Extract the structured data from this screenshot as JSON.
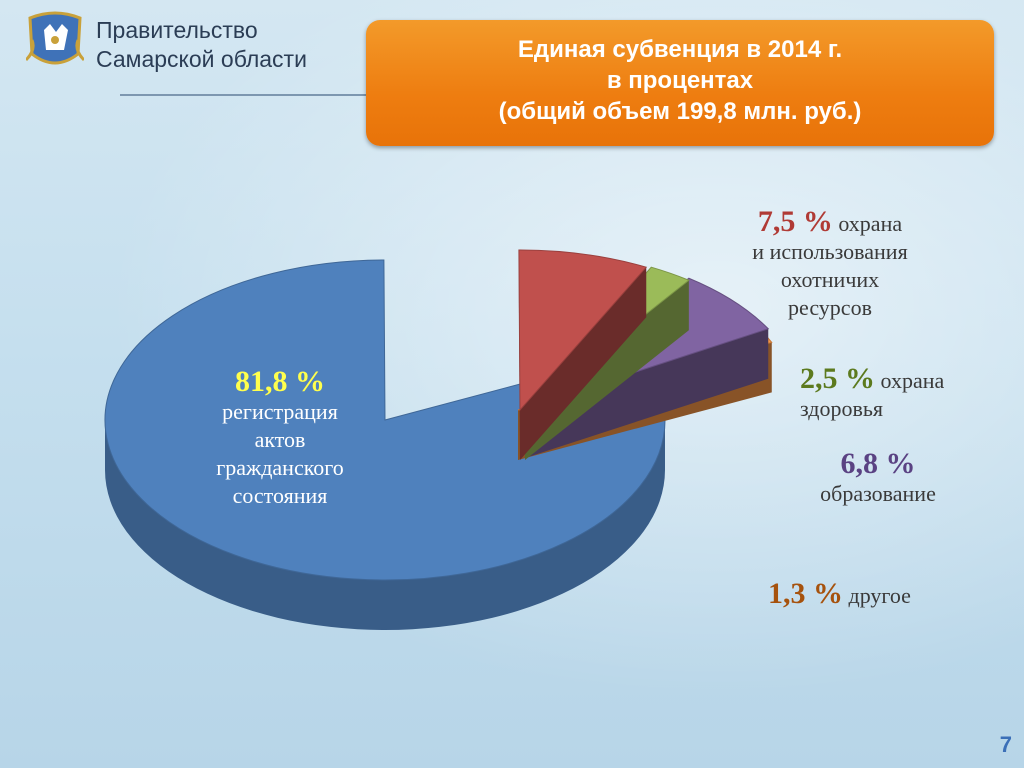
{
  "header": {
    "org_line1": "Правительство",
    "org_line2": "Самарской области"
  },
  "title": {
    "line1": "Единая субвенция в 2014 г.",
    "line2": "в процентах",
    "line3": "(общий объем 199,8 млн. руб.)"
  },
  "page_number": "7",
  "colors": {
    "title_box": "#ee7d10",
    "slice_registration": "#4f81bd",
    "slice_hunting": "#c0504d",
    "slice_health": "#9bbb59",
    "slice_education": "#8064a2",
    "slice_other": "#f79646"
  },
  "chart_data": {
    "type": "pie",
    "title": "Единая субвенция в 2014 г. в процентах (общий объем 199,8 млн. руб.)",
    "unit": "%",
    "slices": [
      {
        "value": 81.8,
        "value_label": "81,8 %",
        "label_lines": [
          "регистрация",
          "актов",
          "гражданского",
          "состояния"
        ],
        "color": "#4f81bd",
        "label_color": "#ffff4d"
      },
      {
        "value": 7.5,
        "value_label": "7,5 %",
        "label_lines": [
          "охрана",
          "и использования",
          "охотничих",
          "ресурсов"
        ],
        "color": "#c0504d",
        "label_color": "#b03a35"
      },
      {
        "value": 2.5,
        "value_label": "2,5 %",
        "label_lines": [
          "охрана",
          "здоровья"
        ],
        "color": "#9bbb59",
        "label_color": "#5c7a1e"
      },
      {
        "value": 6.8,
        "value_label": "6,8 %",
        "label_lines": [
          "образование"
        ],
        "color": "#8064a2",
        "label_color": "#5a4283"
      },
      {
        "value": 1.3,
        "value_label": "1,3 %",
        "label_lines": [
          "другое"
        ],
        "color": "#f79646",
        "label_color": "#a6520d"
      }
    ]
  }
}
